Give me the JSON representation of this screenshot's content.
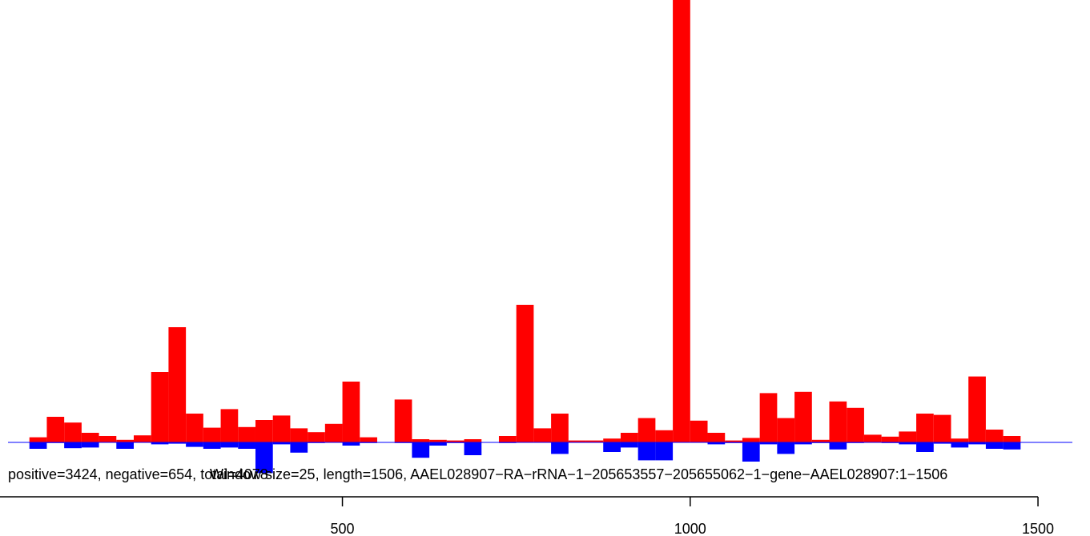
{
  "chart_data": {
    "type": "bar",
    "caption": "positive=3424, negative=654, total=4078",
    "caption2": "Window size=25, length=1506, AAEL028907−RA−rRNA−1−205653557−205655062−1−gene−AAEL028907:1−1506",
    "x_ticks": [
      500,
      1000,
      1500
    ],
    "x_tick_labels": [
      "500",
      "1000",
      "1500"
    ],
    "xlim": [
      0,
      1540
    ],
    "bin_width": 25,
    "colors": {
      "positive": "#ff0000",
      "negative": "#0000ff",
      "baseline": "#0000ff",
      "axis": "#000000"
    },
    "positive": [
      {
        "x": 50,
        "y": 8
      },
      {
        "x": 75,
        "y": 40
      },
      {
        "x": 100,
        "y": 31
      },
      {
        "x": 125,
        "y": 15
      },
      {
        "x": 150,
        "y": 10
      },
      {
        "x": 175,
        "y": 4
      },
      {
        "x": 200,
        "y": 11
      },
      {
        "x": 225,
        "y": 110
      },
      {
        "x": 250,
        "y": 180
      },
      {
        "x": 275,
        "y": 45
      },
      {
        "x": 300,
        "y": 23
      },
      {
        "x": 325,
        "y": 52
      },
      {
        "x": 350,
        "y": 24
      },
      {
        "x": 375,
        "y": 35
      },
      {
        "x": 400,
        "y": 42
      },
      {
        "x": 425,
        "y": 22
      },
      {
        "x": 450,
        "y": 16
      },
      {
        "x": 475,
        "y": 29
      },
      {
        "x": 500,
        "y": 95
      },
      {
        "x": 525,
        "y": 8
      },
      {
        "x": 575,
        "y": 67
      },
      {
        "x": 600,
        "y": 5
      },
      {
        "x": 625,
        "y": 4
      },
      {
        "x": 650,
        "y": 3
      },
      {
        "x": 675,
        "y": 5
      },
      {
        "x": 725,
        "y": 10
      },
      {
        "x": 750,
        "y": 215
      },
      {
        "x": 775,
        "y": 22
      },
      {
        "x": 800,
        "y": 45
      },
      {
        "x": 825,
        "y": 3
      },
      {
        "x": 850,
        "y": 3
      },
      {
        "x": 875,
        "y": 6
      },
      {
        "x": 900,
        "y": 15
      },
      {
        "x": 925,
        "y": 38
      },
      {
        "x": 950,
        "y": 19
      },
      {
        "x": 975,
        "y": 700
      },
      {
        "x": 1000,
        "y": 34
      },
      {
        "x": 1025,
        "y": 15
      },
      {
        "x": 1050,
        "y": 3
      },
      {
        "x": 1075,
        "y": 7
      },
      {
        "x": 1100,
        "y": 77
      },
      {
        "x": 1125,
        "y": 38
      },
      {
        "x": 1150,
        "y": 79
      },
      {
        "x": 1175,
        "y": 4
      },
      {
        "x": 1200,
        "y": 64
      },
      {
        "x": 1225,
        "y": 54
      },
      {
        "x": 1250,
        "y": 12
      },
      {
        "x": 1275,
        "y": 9
      },
      {
        "x": 1300,
        "y": 17
      },
      {
        "x": 1325,
        "y": 45
      },
      {
        "x": 1350,
        "y": 43
      },
      {
        "x": 1375,
        "y": 6
      },
      {
        "x": 1400,
        "y": 103
      },
      {
        "x": 1425,
        "y": 20
      },
      {
        "x": 1450,
        "y": 10
      }
    ],
    "negative": [
      {
        "x": 50,
        "y": -10
      },
      {
        "x": 75,
        "y": -1
      },
      {
        "x": 100,
        "y": -9
      },
      {
        "x": 125,
        "y": -8
      },
      {
        "x": 175,
        "y": -10
      },
      {
        "x": 225,
        "y": -3
      },
      {
        "x": 250,
        "y": -2
      },
      {
        "x": 275,
        "y": -7
      },
      {
        "x": 300,
        "y": -10
      },
      {
        "x": 325,
        "y": -8
      },
      {
        "x": 350,
        "y": -10
      },
      {
        "x": 375,
        "y": -48
      },
      {
        "x": 400,
        "y": -3
      },
      {
        "x": 425,
        "y": -16
      },
      {
        "x": 450,
        "y": -1
      },
      {
        "x": 500,
        "y": -5
      },
      {
        "x": 525,
        "y": -1
      },
      {
        "x": 575,
        "y": -1
      },
      {
        "x": 600,
        "y": -24
      },
      {
        "x": 625,
        "y": -5
      },
      {
        "x": 650,
        "y": -1
      },
      {
        "x": 675,
        "y": -20
      },
      {
        "x": 725,
        "y": -1
      },
      {
        "x": 800,
        "y": -18
      },
      {
        "x": 875,
        "y": -15
      },
      {
        "x": 900,
        "y": -8
      },
      {
        "x": 925,
        "y": -28
      },
      {
        "x": 950,
        "y": -28
      },
      {
        "x": 1025,
        "y": -3
      },
      {
        "x": 1050,
        "y": -1
      },
      {
        "x": 1075,
        "y": -30
      },
      {
        "x": 1100,
        "y": -3
      },
      {
        "x": 1125,
        "y": -18
      },
      {
        "x": 1150,
        "y": -3
      },
      {
        "x": 1175,
        "y": -1
      },
      {
        "x": 1200,
        "y": -11
      },
      {
        "x": 1225,
        "y": -1
      },
      {
        "x": 1275,
        "y": -1
      },
      {
        "x": 1300,
        "y": -3
      },
      {
        "x": 1325,
        "y": -15
      },
      {
        "x": 1350,
        "y": -2
      },
      {
        "x": 1375,
        "y": -8
      },
      {
        "x": 1400,
        "y": -3
      },
      {
        "x": 1425,
        "y": -10
      },
      {
        "x": 1450,
        "y": -11
      }
    ]
  }
}
